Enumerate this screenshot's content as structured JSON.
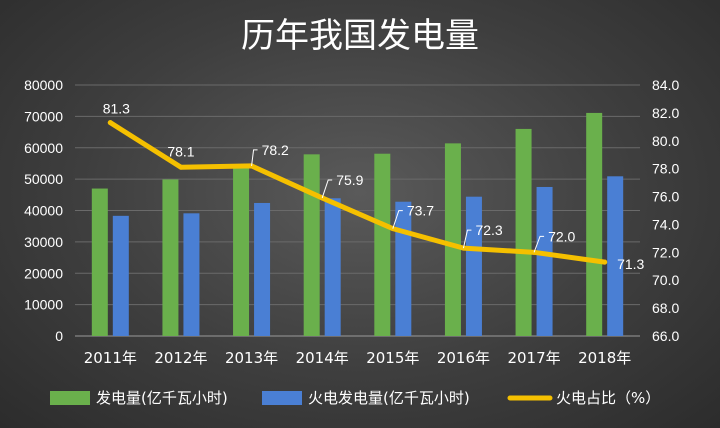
{
  "chart_data": {
    "type": "bar",
    "title": "历年我国发电量",
    "categories": [
      "2011年",
      "2012年",
      "2013年",
      "2014年",
      "2015年",
      "2016年",
      "2017年",
      "2018年"
    ],
    "series": [
      {
        "name": "发电量(亿千瓦小时)",
        "type": "bar",
        "axis": "left",
        "color": "#6ab04c",
        "values": [
          47000,
          49900,
          54300,
          57900,
          58100,
          61400,
          66000,
          71100
        ]
      },
      {
        "name": "火电发电量(亿千瓦小时)",
        "type": "bar",
        "axis": "left",
        "color": "#4a7fd4",
        "values": [
          38300,
          39100,
          42400,
          43900,
          42800,
          44400,
          47500,
          50900
        ]
      },
      {
        "name": "火电占比（%）",
        "type": "line",
        "axis": "right",
        "color": "#f5c000",
        "values": [
          81.3,
          78.1,
          78.2,
          75.9,
          73.7,
          72.3,
          72.0,
          71.3
        ],
        "labels": [
          "81.3",
          "78.1",
          "78.2",
          "75.9",
          "73.7",
          "72.3",
          "72.0",
          "71.3"
        ]
      }
    ],
    "y_left": {
      "min": 0,
      "max": 80000,
      "ticks": [
        "0",
        "10000",
        "20000",
        "30000",
        "40000",
        "50000",
        "60000",
        "70000",
        "80000"
      ]
    },
    "y_right": {
      "min": 66.0,
      "max": 84.0,
      "ticks": [
        "66.0",
        "68.0",
        "70.0",
        "72.0",
        "74.0",
        "76.0",
        "78.0",
        "80.0",
        "82.0",
        "84.0"
      ]
    },
    "legend_position": "bottom",
    "grid": true
  },
  "colors": {
    "text": "#ffffff",
    "gridline": "#6a6a6a",
    "axis": "#9a9a9a",
    "label_leader": "#ffffff"
  }
}
